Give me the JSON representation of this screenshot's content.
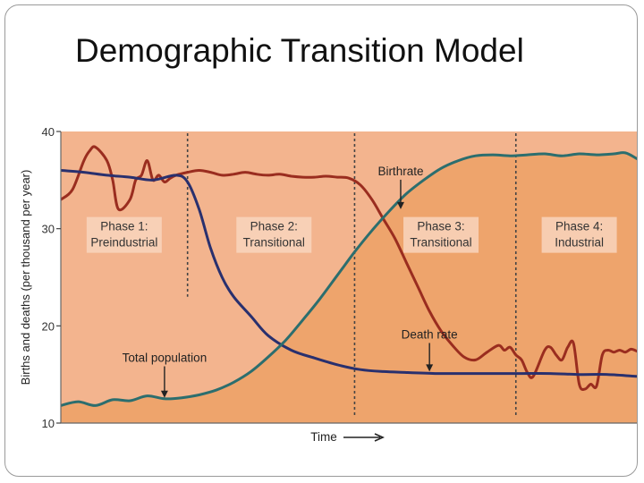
{
  "slide": {
    "title": "Demographic Transition Model"
  },
  "colors": {
    "plot_background": "#f3b48e",
    "population_fill": "#eea46c",
    "birthrate_line": "#9a2d1f",
    "death_rate_line": "#29306e",
    "population_line": "#2c6e6e",
    "phase_divider": "#444444",
    "phase_label_box": "#f8d5bd"
  },
  "chart_data": {
    "type": "line",
    "title": "",
    "xlabel": "Time",
    "ylabel": "Births and deaths (per thousand per year)",
    "ylim": [
      10,
      40
    ],
    "yticks": [
      10,
      20,
      30,
      40
    ],
    "xlim": [
      0,
      100
    ],
    "grid": false,
    "phase_boundaries": [
      22,
      51,
      79
    ],
    "phases": [
      {
        "name": "Phase 1:",
        "subtitle": "Preindustrial",
        "x_center": 11
      },
      {
        "name": "Phase 2:",
        "subtitle": "Transitional",
        "x_center": 37
      },
      {
        "name": "Phase 3:",
        "subtitle": "Transitional",
        "x_center": 66
      },
      {
        "name": "Phase 4:",
        "subtitle": "Industrial",
        "x_center": 90
      }
    ],
    "series": [
      {
        "name": "Birthrate",
        "x": [
          0,
          2,
          4,
          5,
          6,
          8,
          9,
          10,
          12,
          13,
          14,
          15,
          16,
          17,
          18,
          19,
          20,
          22,
          24,
          26,
          28,
          30,
          32,
          34,
          36,
          38,
          40,
          42,
          44,
          46,
          48,
          50,
          52,
          54,
          56,
          58,
          60,
          62,
          64,
          66,
          68,
          70,
          72,
          74,
          76,
          77,
          78,
          79,
          80,
          81,
          82,
          84,
          85,
          86,
          87,
          88,
          89,
          90,
          91,
          92,
          93,
          94,
          95,
          96,
          97,
          98,
          99,
          100
        ],
        "values": [
          33,
          34,
          37,
          38,
          38.4,
          37,
          35,
          32,
          33,
          35,
          35.5,
          37,
          35,
          35.5,
          34.8,
          35.2,
          35.5,
          35.8,
          36,
          35.8,
          35.5,
          35.6,
          35.8,
          35.6,
          35.5,
          35.6,
          35.4,
          35.3,
          35.3,
          35.4,
          35.3,
          35.2,
          34.5,
          33,
          31,
          29,
          26.5,
          24,
          21.5,
          19.5,
          18,
          16.8,
          16.5,
          17.3,
          18,
          17.5,
          17.8,
          17,
          16.5,
          15.2,
          14.8,
          17.5,
          17.8,
          17,
          16.5,
          17.8,
          18.2,
          14,
          13.5,
          14,
          13.8,
          17,
          17.5,
          17.3,
          17.5,
          17.3,
          17.6,
          17.4
        ]
      },
      {
        "name": "Death rate",
        "x": [
          0,
          4,
          8,
          12,
          16,
          20,
          22,
          24,
          26,
          28,
          30,
          33,
          36,
          40,
          44,
          48,
          52,
          56,
          60,
          65,
          70,
          75,
          80,
          85,
          90,
          95,
          100
        ],
        "values": [
          36,
          35.8,
          35.5,
          35.3,
          35,
          35.5,
          34.8,
          32,
          28,
          25,
          23,
          21,
          19,
          17.5,
          16.7,
          16,
          15.5,
          15.3,
          15.2,
          15.1,
          15.1,
          15.1,
          15.1,
          15.1,
          15,
          15,
          14.8
        ]
      },
      {
        "name": "Total population",
        "x": [
          0,
          3,
          6,
          9,
          12,
          15,
          18,
          21,
          24,
          27,
          30,
          33,
          36,
          39,
          42,
          45,
          48,
          51,
          54,
          57,
          60,
          63,
          66,
          69,
          72,
          75,
          78,
          81,
          84,
          87,
          90,
          93,
          96,
          98,
          100
        ],
        "values": [
          11.8,
          12.2,
          11.8,
          12.4,
          12.3,
          12.8,
          12.5,
          12.6,
          12.9,
          13.4,
          14.2,
          15.3,
          16.8,
          18.5,
          20.6,
          22.8,
          25.2,
          27.6,
          29.8,
          31.8,
          33.6,
          35,
          36.2,
          37,
          37.5,
          37.6,
          37.5,
          37.6,
          37.7,
          37.5,
          37.7,
          37.6,
          37.7,
          37.8,
          37.2
        ]
      }
    ],
    "annotations": [
      {
        "text": "Birthrate",
        "series": "Birthrate",
        "x": 59,
        "y": 35.5,
        "arrow_to": [
          59,
          32
        ]
      },
      {
        "text": "Death rate",
        "series": "Death rate",
        "x": 64,
        "y": 18.7,
        "arrow_to": [
          64,
          15.3
        ]
      },
      {
        "text": "Total population",
        "series": "Total population",
        "x": 18,
        "y": 16.3,
        "arrow_to": [
          18,
          12.6
        ]
      }
    ]
  }
}
